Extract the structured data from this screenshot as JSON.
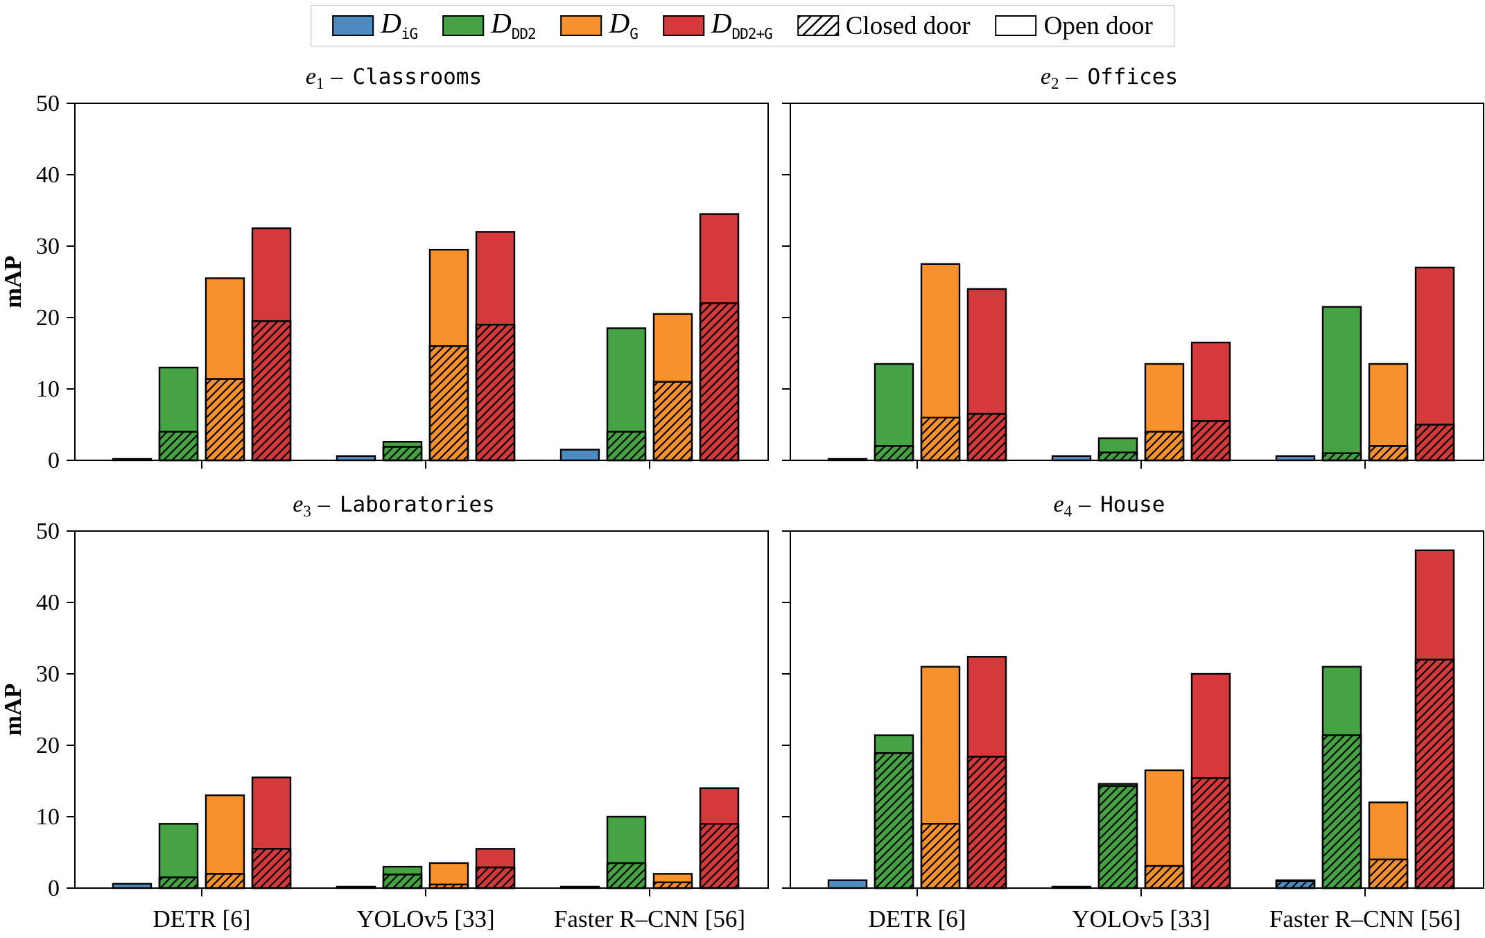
{
  "figure": {
    "ylabel": "mAP",
    "yticks": [
      0,
      10,
      20,
      30,
      40,
      50
    ],
    "ylim": [
      0,
      50
    ]
  },
  "legend": {
    "series": [
      {
        "key": "iG",
        "label_main": "D",
        "label_sub": "iG",
        "color": "#4E8AC0"
      },
      {
        "key": "DD2",
        "label_main": "D",
        "label_sub": "DD2",
        "color": "#45A344"
      },
      {
        "key": "G",
        "label_main": "D",
        "label_sub": "G",
        "color": "#F7912B"
      },
      {
        "key": "DD2+G",
        "label_main": "D",
        "label_sub": "DD2+G",
        "color": "#D23A3B"
      }
    ],
    "closed_label": "Closed door",
    "open_label": "Open door"
  },
  "colors": {
    "iG": "#4E8AC0",
    "DD2": "#45A344",
    "G": "#F7912B",
    "DD2+G": "#D23A3B",
    "edge": "#000000"
  },
  "chart_data": [
    {
      "type": "bar",
      "title": "e1 - Classrooms",
      "title_sub": "1",
      "env": "Classrooms",
      "categories": [
        "DETR [6]",
        "YOLOv5 [33]",
        "Faster R–CNN [56]"
      ],
      "ylabel": "mAP",
      "ylim": [
        0,
        50
      ],
      "series": [
        {
          "name": "D_iG",
          "total": [
            0.2,
            0.6,
            1.5
          ],
          "closed": [
            0,
            0,
            0
          ]
        },
        {
          "name": "D_DD2",
          "total": [
            13.0,
            2.6,
            18.5
          ],
          "closed": [
            4.0,
            1.9,
            4.0
          ]
        },
        {
          "name": "D_G",
          "total": [
            25.5,
            29.5,
            20.5
          ],
          "closed": [
            11.4,
            16.0,
            11.0
          ]
        },
        {
          "name": "D_DD2+G",
          "total": [
            32.5,
            32.0,
            34.5
          ],
          "closed": [
            19.5,
            19.0,
            22.0
          ]
        }
      ]
    },
    {
      "type": "bar",
      "title": "e2 - Offices",
      "title_sub": "2",
      "env": "Offices",
      "categories": [
        "DETR [6]",
        "YOLOv5 [33]",
        "Faster R–CNN [56]"
      ],
      "ylabel": "mAP",
      "ylim": [
        0,
        50
      ],
      "series": [
        {
          "name": "D_iG",
          "total": [
            0.2,
            0.6,
            0.6
          ],
          "closed": [
            0,
            0,
            0
          ]
        },
        {
          "name": "D_DD2",
          "total": [
            13.5,
            3.1,
            21.5
          ],
          "closed": [
            2.0,
            1.1,
            1.0
          ]
        },
        {
          "name": "D_G",
          "total": [
            27.5,
            13.5,
            13.5
          ],
          "closed": [
            6.0,
            4.0,
            2.0
          ]
        },
        {
          "name": "D_DD2+G",
          "total": [
            24.0,
            16.5,
            27.0
          ],
          "closed": [
            6.5,
            5.5,
            5.0
          ]
        }
      ]
    },
    {
      "type": "bar",
      "title": "e3 - Laboratories",
      "title_sub": "3",
      "env": "Laboratories",
      "categories": [
        "DETR [6]",
        "YOLOv5 [33]",
        "Faster R–CNN [56]"
      ],
      "ylabel": "mAP",
      "ylim": [
        0,
        50
      ],
      "series": [
        {
          "name": "D_iG",
          "total": [
            0.6,
            0.2,
            0.2
          ],
          "closed": [
            0,
            0,
            0
          ]
        },
        {
          "name": "D_DD2",
          "total": [
            9.0,
            3.0,
            10.0
          ],
          "closed": [
            1.5,
            1.9,
            3.5
          ]
        },
        {
          "name": "D_G",
          "total": [
            13.0,
            3.5,
            2.0
          ],
          "closed": [
            2.0,
            0.5,
            0.8
          ]
        },
        {
          "name": "D_DD2+G",
          "total": [
            15.5,
            5.5,
            14.0
          ],
          "closed": [
            5.5,
            2.9,
            9.0
          ]
        }
      ]
    },
    {
      "type": "bar",
      "title": "e4 - House",
      "title_sub": "4",
      "env": "House",
      "categories": [
        "DETR [6]",
        "YOLOv5 [33]",
        "Faster R–CNN [56]"
      ],
      "ylabel": "mAP",
      "ylim": [
        0,
        50
      ],
      "series": [
        {
          "name": "D_iG",
          "total": [
            1.1,
            0.2,
            1.1
          ],
          "closed": [
            0,
            0,
            1.0
          ]
        },
        {
          "name": "D_DD2",
          "total": [
            21.4,
            14.6,
            31.0
          ],
          "closed": [
            18.9,
            14.3,
            21.4
          ]
        },
        {
          "name": "D_G",
          "total": [
            31.0,
            16.5,
            12.0
          ],
          "closed": [
            9.0,
            3.1,
            4.0
          ]
        },
        {
          "name": "D_DD2+G",
          "total": [
            32.4,
            30.0,
            47.3
          ],
          "closed": [
            18.4,
            15.4,
            32.0
          ]
        }
      ]
    }
  ]
}
